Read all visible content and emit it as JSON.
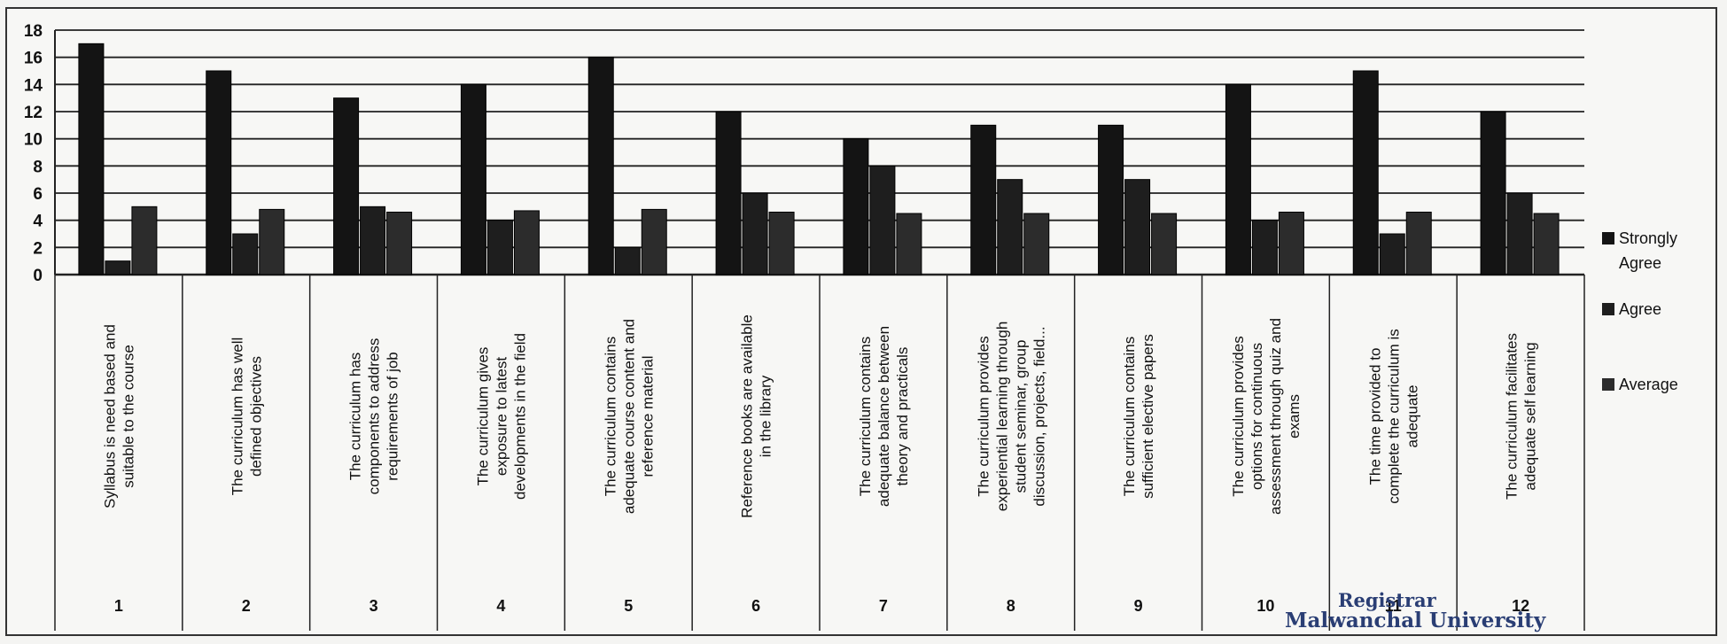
{
  "chart_data": {
    "type": "bar",
    "ylim": [
      0,
      18
    ],
    "yticks": [
      0,
      2,
      4,
      6,
      8,
      10,
      12,
      14,
      16,
      18
    ],
    "grid": true,
    "legend_position": "right",
    "categories": [
      "1",
      "2",
      "3",
      "4",
      "5",
      "6",
      "7",
      "8",
      "9",
      "10",
      "11",
      "12"
    ],
    "category_labels": [
      [
        "Syllabus is need based and",
        "suitable to the course"
      ],
      [
        "The curriculum has well",
        "defined objectives"
      ],
      [
        "The curriculum has",
        "components to address",
        "requirements of job"
      ],
      [
        "The curriculum gives",
        "exposure to latest",
        "developments in the field"
      ],
      [
        "The curriculum contains",
        "adequate course content and",
        "reference material"
      ],
      [
        "Reference books are available",
        "in the library"
      ],
      [
        "The curriculum contains",
        "adequate balance between",
        "theory and practicals"
      ],
      [
        "The curriculum provides",
        "experiential learning through",
        "student seminar, group",
        "discussion, projects, field..."
      ],
      [
        "The curriculum contains",
        "sufficient elective papers"
      ],
      [
        "The curriculum provides",
        "options for continuous",
        "assessment through quiz and",
        "exams"
      ],
      [
        "The time provided to",
        "complete the curriculum is",
        "adequate"
      ],
      [
        "The curriculum facilitates",
        "adequate self learning"
      ]
    ],
    "series": [
      {
        "name": "Strongly Agree",
        "color": "#141414",
        "values": [
          17,
          15,
          13,
          14,
          16,
          12,
          10,
          11,
          11,
          14,
          15,
          12
        ]
      },
      {
        "name": "Agree",
        "color": "#1e1e1e",
        "values": [
          1,
          3,
          5,
          4,
          2,
          6,
          8,
          7,
          7,
          4,
          3,
          6
        ]
      },
      {
        "name": "Average",
        "color": "#2c2c2c",
        "values": [
          5,
          4.8,
          4.6,
          4.7,
          4.8,
          4.6,
          4.5,
          4.5,
          4.5,
          4.6,
          4.6,
          4.5
        ]
      }
    ],
    "legend": [
      "Strongly Agree",
      "Agree",
      "Average"
    ],
    "legend_lines": [
      [
        "Strongly",
        "Agree"
      ],
      [
        "Agree"
      ],
      [
        "Average"
      ]
    ]
  },
  "stamp": {
    "title": "Registrar",
    "institution": "Malwanchal University"
  }
}
